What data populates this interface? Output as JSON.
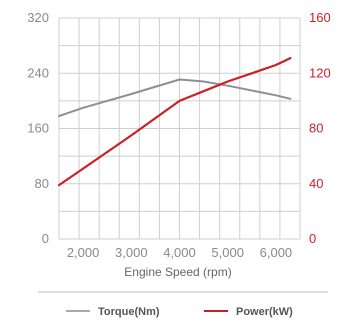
{
  "chart_data": {
    "type": "line",
    "xlabel": "Engine Speed (rpm)",
    "x_range": [
      1500,
      6500
    ],
    "x_ticks": [
      2000,
      3000,
      4000,
      5000,
      6000
    ],
    "x_tick_labels": [
      "2,000",
      "3,000",
      "4,000",
      "5,000",
      "6,000"
    ],
    "grid": true,
    "legend_position": "bottom",
    "y_left": {
      "ylim": [
        0,
        320
      ],
      "ticks": [
        0,
        80,
        160,
        240,
        320
      ],
      "tick_labels": [
        "0",
        "80",
        "160",
        "240",
        "320"
      ],
      "color": "#8a8a8a"
    },
    "y_right": {
      "ylim": [
        0,
        160
      ],
      "ticks": [
        0,
        40,
        80,
        120,
        160
      ],
      "tick_labels": [
        "0",
        "40",
        "80",
        "120",
        "160"
      ],
      "color": "#cc1f2a"
    },
    "series": [
      {
        "name": "Torque(Nm)",
        "axis": "left",
        "color": "#8f8f8f",
        "x": [
          1500,
          2000,
          3000,
          4000,
          4500,
          5000,
          6000,
          6300
        ],
        "y": [
          178,
          190,
          210,
          231,
          228,
          222,
          208,
          203
        ]
      },
      {
        "name": "Power(kW)",
        "axis": "right",
        "color": "#cc1f2a",
        "x": [
          1500,
          2000,
          3000,
          4000,
          4500,
          5000,
          5500,
          6000,
          6300
        ],
        "y": [
          39,
          51,
          75,
          100,
          107,
          114,
          120,
          126,
          131
        ]
      }
    ]
  }
}
